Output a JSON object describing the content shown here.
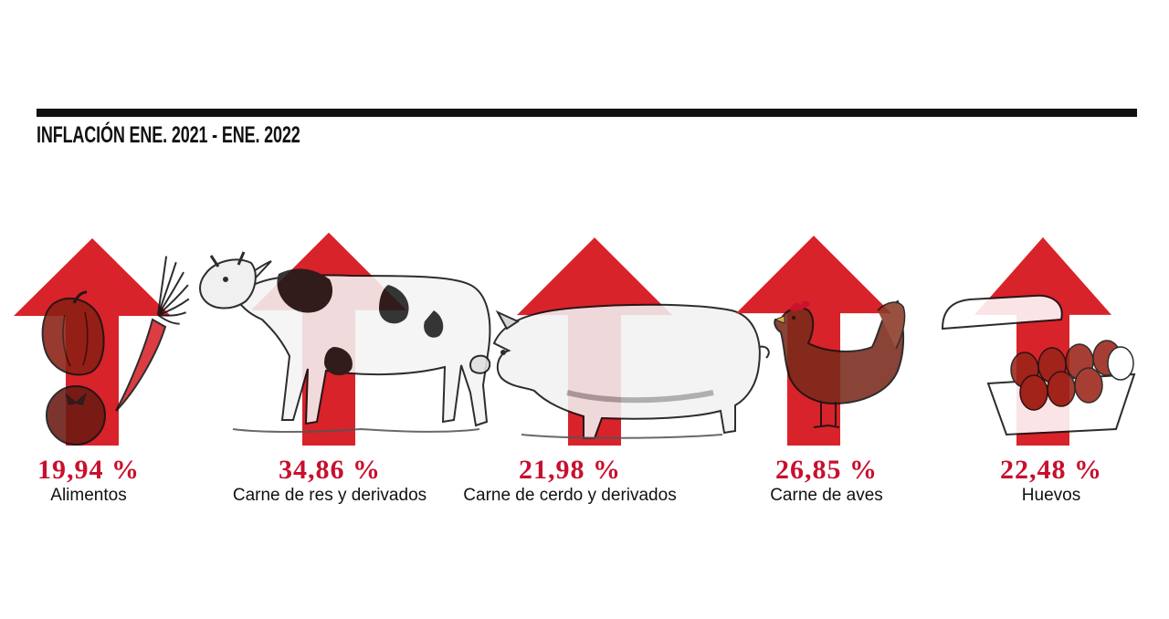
{
  "header": {
    "title": "INFLACIÓN ENE. 2021 - ENE. 2022"
  },
  "colors": {
    "arrow": "#d8232a",
    "value_text": "#c8102e",
    "ink": "#111111"
  },
  "chart_data": {
    "type": "bar",
    "title": "INFLACIÓN ENE. 2021 - ENE. 2022",
    "categories": [
      "Alimentos",
      "Carne de res y derivados",
      "Carne de cerdo y derivados",
      "Carne de aves",
      "Huevos"
    ],
    "values": [
      19.94,
      34.86,
      21.98,
      26.85,
      22.48
    ],
    "value_labels": [
      "19,94 %",
      "34,86 %",
      "21,98 %",
      "26,85 %",
      "22,48 %"
    ],
    "unit": "%",
    "icons": [
      "vegetables-icon",
      "cow-icon",
      "pig-icon",
      "chicken-icon",
      "egg-carton-icon"
    ]
  }
}
